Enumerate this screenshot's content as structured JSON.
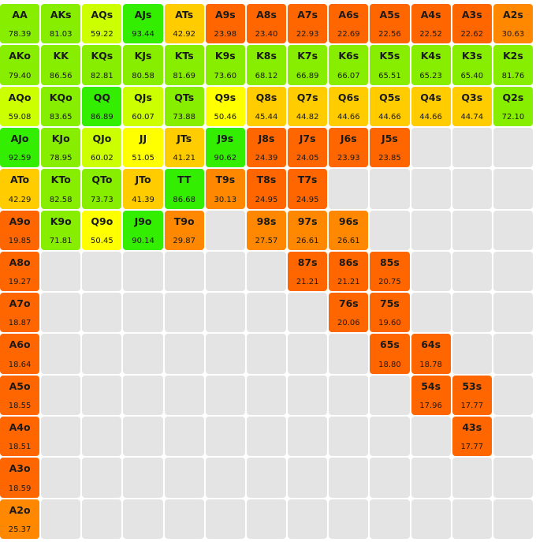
{
  "colors": {
    "green": "#33ee00",
    "lime": "#88ee00",
    "yellow_green": "#ccff00",
    "yellow": "#ffff00",
    "gold": "#ffcc00",
    "orange": "#ff8800",
    "deep_orange": "#ff6600",
    "empty": "#e4e4e4"
  },
  "rows": [
    [
      {
        "h": "AA",
        "v": "78.39",
        "c": "lime"
      },
      {
        "h": "AKs",
        "v": "81.03",
        "c": "lime"
      },
      {
        "h": "AQs",
        "v": "59.22",
        "c": "yellow_green"
      },
      {
        "h": "AJs",
        "v": "93.44",
        "c": "green"
      },
      {
        "h": "ATs",
        "v": "42.92",
        "c": "gold"
      },
      {
        "h": "A9s",
        "v": "23.98",
        "c": "deep_orange"
      },
      {
        "h": "A8s",
        "v": "23.40",
        "c": "deep_orange"
      },
      {
        "h": "A7s",
        "v": "22.93",
        "c": "deep_orange"
      },
      {
        "h": "A6s",
        "v": "22.69",
        "c": "deep_orange"
      },
      {
        "h": "A5s",
        "v": "22.56",
        "c": "deep_orange"
      },
      {
        "h": "A4s",
        "v": "22.52",
        "c": "deep_orange"
      },
      {
        "h": "A3s",
        "v": "22.62",
        "c": "deep_orange"
      },
      {
        "h": "A2s",
        "v": "30.63",
        "c": "orange"
      }
    ],
    [
      {
        "h": "AKo",
        "v": "79.40",
        "c": "lime"
      },
      {
        "h": "KK",
        "v": "86.56",
        "c": "lime"
      },
      {
        "h": "KQs",
        "v": "82.81",
        "c": "lime"
      },
      {
        "h": "KJs",
        "v": "80.58",
        "c": "lime"
      },
      {
        "h": "KTs",
        "v": "81.69",
        "c": "lime"
      },
      {
        "h": "K9s",
        "v": "73.60",
        "c": "lime"
      },
      {
        "h": "K8s",
        "v": "68.12",
        "c": "lime"
      },
      {
        "h": "K7s",
        "v": "66.89",
        "c": "lime"
      },
      {
        "h": "K6s",
        "v": "66.07",
        "c": "lime"
      },
      {
        "h": "K5s",
        "v": "65.51",
        "c": "lime"
      },
      {
        "h": "K4s",
        "v": "65.23",
        "c": "lime"
      },
      {
        "h": "K3s",
        "v": "65.40",
        "c": "lime"
      },
      {
        "h": "K2s",
        "v": "81.76",
        "c": "lime"
      }
    ],
    [
      {
        "h": "AQo",
        "v": "59.08",
        "c": "yellow_green"
      },
      {
        "h": "KQo",
        "v": "83.65",
        "c": "lime"
      },
      {
        "h": "QQ",
        "v": "86.89",
        "c": "green"
      },
      {
        "h": "QJs",
        "v": "60.07",
        "c": "yellow_green"
      },
      {
        "h": "QTs",
        "v": "73.88",
        "c": "lime"
      },
      {
        "h": "Q9s",
        "v": "50.46",
        "c": "yellow"
      },
      {
        "h": "Q8s",
        "v": "45.44",
        "c": "gold"
      },
      {
        "h": "Q7s",
        "v": "44.82",
        "c": "gold"
      },
      {
        "h": "Q6s",
        "v": "44.66",
        "c": "gold"
      },
      {
        "h": "Q5s",
        "v": "44.66",
        "c": "gold"
      },
      {
        "h": "Q4s",
        "v": "44.66",
        "c": "gold"
      },
      {
        "h": "Q3s",
        "v": "44.74",
        "c": "gold"
      },
      {
        "h": "Q2s",
        "v": "72.10",
        "c": "lime"
      }
    ],
    [
      {
        "h": "AJo",
        "v": "92.59",
        "c": "green"
      },
      {
        "h": "KJo",
        "v": "78.95",
        "c": "lime"
      },
      {
        "h": "QJo",
        "v": "60.02",
        "c": "yellow_green"
      },
      {
        "h": "JJ",
        "v": "51.05",
        "c": "yellow"
      },
      {
        "h": "JTs",
        "v": "41.21",
        "c": "gold"
      },
      {
        "h": "J9s",
        "v": "90.62",
        "c": "green"
      },
      {
        "h": "J8s",
        "v": "24.39",
        "c": "deep_orange"
      },
      {
        "h": "J7s",
        "v": "24.05",
        "c": "deep_orange"
      },
      {
        "h": "J6s",
        "v": "23.93",
        "c": "deep_orange"
      },
      {
        "h": "J5s",
        "v": "23.85",
        "c": "deep_orange"
      },
      null,
      null,
      null
    ],
    [
      {
        "h": "ATo",
        "v": "42.29",
        "c": "gold"
      },
      {
        "h": "KTo",
        "v": "82.58",
        "c": "lime"
      },
      {
        "h": "QTo",
        "v": "73.73",
        "c": "lime"
      },
      {
        "h": "JTo",
        "v": "41.39",
        "c": "gold"
      },
      {
        "h": "TT",
        "v": "86.68",
        "c": "green"
      },
      {
        "h": "T9s",
        "v": "30.13",
        "c": "orange"
      },
      {
        "h": "T8s",
        "v": "24.95",
        "c": "deep_orange"
      },
      {
        "h": "T7s",
        "v": "24.95",
        "c": "deep_orange"
      },
      null,
      null,
      null,
      null,
      null
    ],
    [
      {
        "h": "A9o",
        "v": "19.85",
        "c": "deep_orange"
      },
      {
        "h": "K9o",
        "v": "71.81",
        "c": "lime"
      },
      {
        "h": "Q9o",
        "v": "50.45",
        "c": "yellow"
      },
      {
        "h": "J9o",
        "v": "90.14",
        "c": "green"
      },
      {
        "h": "T9o",
        "v": "29.87",
        "c": "orange"
      },
      null,
      {
        "h": "98s",
        "v": "27.57",
        "c": "orange"
      },
      {
        "h": "97s",
        "v": "26.61",
        "c": "orange"
      },
      {
        "h": "96s",
        "v": "26.61",
        "c": "orange"
      },
      null,
      null,
      null,
      null
    ],
    [
      {
        "h": "A8o",
        "v": "19.27",
        "c": "deep_orange"
      },
      null,
      null,
      null,
      null,
      null,
      null,
      {
        "h": "87s",
        "v": "21.21",
        "c": "deep_orange"
      },
      {
        "h": "86s",
        "v": "21.21",
        "c": "deep_orange"
      },
      {
        "h": "85s",
        "v": "20.75",
        "c": "deep_orange"
      },
      null,
      null,
      null
    ],
    [
      {
        "h": "A7o",
        "v": "18.87",
        "c": "deep_orange"
      },
      null,
      null,
      null,
      null,
      null,
      null,
      null,
      {
        "h": "76s",
        "v": "20.06",
        "c": "deep_orange"
      },
      {
        "h": "75s",
        "v": "19.60",
        "c": "deep_orange"
      },
      null,
      null,
      null
    ],
    [
      {
        "h": "A6o",
        "v": "18.64",
        "c": "deep_orange"
      },
      null,
      null,
      null,
      null,
      null,
      null,
      null,
      null,
      {
        "h": "65s",
        "v": "18.80",
        "c": "deep_orange"
      },
      {
        "h": "64s",
        "v": "18.78",
        "c": "deep_orange"
      },
      null,
      null
    ],
    [
      {
        "h": "A5o",
        "v": "18.55",
        "c": "deep_orange"
      },
      null,
      null,
      null,
      null,
      null,
      null,
      null,
      null,
      null,
      {
        "h": "54s",
        "v": "17.96",
        "c": "deep_orange"
      },
      {
        "h": "53s",
        "v": "17.77",
        "c": "deep_orange"
      },
      null
    ],
    [
      {
        "h": "A4o",
        "v": "18.51",
        "c": "deep_orange"
      },
      null,
      null,
      null,
      null,
      null,
      null,
      null,
      null,
      null,
      null,
      {
        "h": "43s",
        "v": "17.77",
        "c": "deep_orange"
      },
      null
    ],
    [
      {
        "h": "A3o",
        "v": "18.59",
        "c": "deep_orange"
      },
      null,
      null,
      null,
      null,
      null,
      null,
      null,
      null,
      null,
      null,
      null,
      null
    ],
    [
      {
        "h": "A2o",
        "v": "25.37",
        "c": "orange"
      },
      null,
      null,
      null,
      null,
      null,
      null,
      null,
      null,
      null,
      null,
      null,
      null
    ]
  ]
}
